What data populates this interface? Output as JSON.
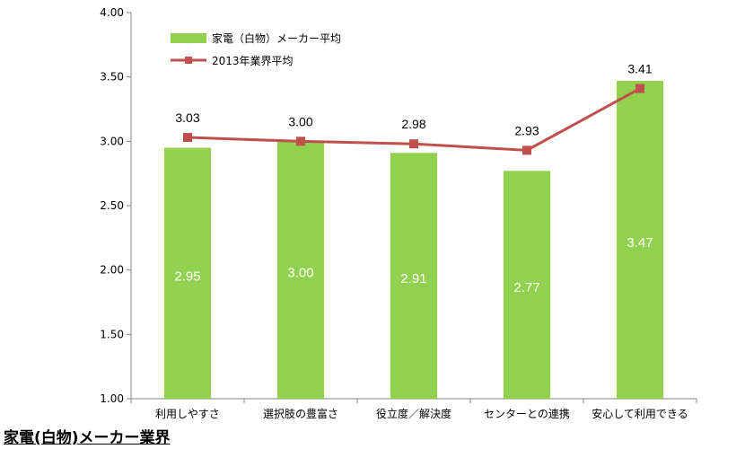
{
  "caption": "家電(白物)メーカー業界",
  "chart_data": {
    "type": "bar",
    "categories": [
      "利用しやすさ",
      "選択肢の豊富さ",
      "役立度／解決度",
      "センターとの連携",
      "安心して利用できる"
    ],
    "ylim": [
      1.0,
      4.0
    ],
    "yticks": [
      "1.00",
      "1.50",
      "2.00",
      "2.50",
      "3.00",
      "3.50",
      "4.00"
    ],
    "grid": false,
    "legend_position": "top-left",
    "series": [
      {
        "name": "家電（白物）メーカー平均",
        "kind": "bar",
        "color": "#92d050",
        "values": [
          2.95,
          3.0,
          2.91,
          2.77,
          3.47
        ],
        "labels": [
          "2.95",
          "3.00",
          "2.91",
          "2.77",
          "3.47"
        ]
      },
      {
        "name": "2013年業界平均",
        "kind": "line",
        "color": "#c0504d",
        "values": [
          3.03,
          3.0,
          2.98,
          2.93,
          3.41
        ],
        "labels": [
          "3.03",
          "3.00",
          "2.98",
          "2.93",
          "3.41"
        ]
      }
    ]
  }
}
